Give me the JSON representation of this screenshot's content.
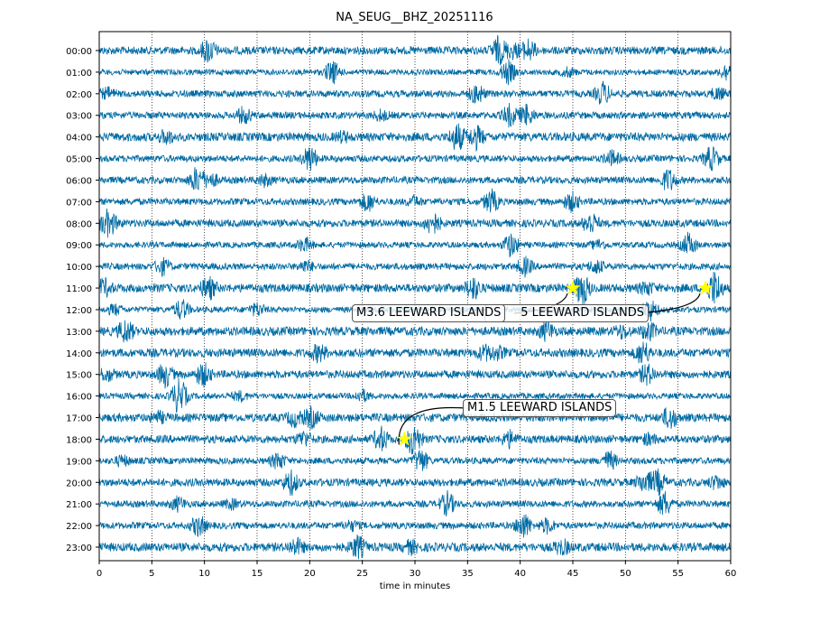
{
  "chart_data": {
    "type": "line",
    "title": "NA_SEUG__BHZ_20251116",
    "xlabel": "time in minutes",
    "ylabel": "",
    "xlim": [
      0,
      60
    ],
    "xticks": [
      "0",
      "5",
      "10",
      "15",
      "20",
      "25",
      "30",
      "35",
      "40",
      "45",
      "50",
      "55",
      "60"
    ],
    "row_labels": [
      "00:00",
      "01:00",
      "02:00",
      "03:00",
      "04:00",
      "05:00",
      "06:00",
      "07:00",
      "08:00",
      "09:00",
      "10:00",
      "11:00",
      "12:00",
      "13:00",
      "14:00",
      "15:00",
      "16:00",
      "17:00",
      "18:00",
      "19:00",
      "20:00",
      "21:00",
      "22:00",
      "23:00"
    ],
    "grid": "vertical dotted every 5 minutes",
    "trace_color": "#006ba4",
    "marker_color": "#ffff00",
    "events": [
      {
        "row": "11:00",
        "minute": 45.0,
        "label": "M3.6 LEEWARD ISLANDS"
      },
      {
        "row": "11:00",
        "minute": 57.6,
        "label": "5 LEEWARD ISLANDS"
      },
      {
        "row": "18:00",
        "minute": 29.0,
        "label": "M1.5 LEEWARD ISLANDS"
      }
    ]
  }
}
